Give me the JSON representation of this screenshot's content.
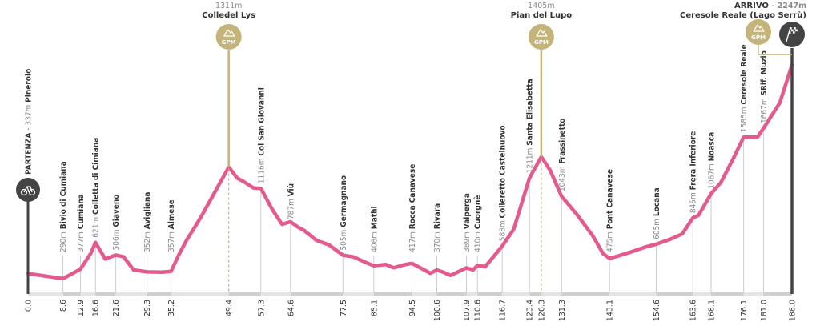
{
  "chart_data": {
    "type": "line",
    "colors": {
      "profile": "#e55a8e",
      "gpm": "#c4b47a",
      "endpoint": "#444444",
      "axis_band": "#dddddd",
      "guide": "#cccccc"
    },
    "x": [
      0.0,
      8.6,
      12.9,
      15.5,
      16.6,
      19.0,
      21.6,
      23.5,
      26.0,
      29.3,
      33.0,
      35.2,
      37.0,
      39.0,
      41.0,
      42.5,
      49.4,
      51.5,
      53.0,
      55.5,
      57.3,
      60.0,
      62.5,
      64.6,
      66.5,
      68.0,
      71.0,
      74.0,
      77.5,
      80.0,
      83.0,
      85.1,
      88.0,
      90.0,
      92.5,
      94.5,
      97.0,
      99.0,
      100.6,
      102.5,
      104.0,
      107.9,
      109.5,
      110.6,
      112.5,
      116.7,
      119.5,
      123.4,
      126.3,
      128.5,
      131.3,
      135.0,
      139.0,
      141.5,
      143.1,
      145.5,
      148.0,
      152.0,
      154.6,
      158.0,
      161.0,
      163.6,
      165.0,
      168.1,
      170.5,
      173.5,
      176.1,
      179.5,
      181.0,
      185.0,
      188.0
    ],
    "y": [
      337,
      290,
      377,
      525,
      621,
      470,
      506,
      490,
      370,
      352,
      350,
      357,
      500,
      640,
      760,
      850,
      1311,
      1210,
      1180,
      1120,
      1116,
      930,
      787,
      810,
      760,
      730,
      640,
      600,
      505,
      490,
      440,
      408,
      420,
      390,
      417,
      430,
      380,
      340,
      370,
      345,
      320,
      389,
      370,
      410,
      400,
      588,
      740,
      1211,
      1405,
      1280,
      1043,
      880,
      680,
      520,
      475,
      500,
      530,
      580,
      605,
      650,
      700,
      845,
      870,
      1067,
      1170,
      1385,
      1585,
      1585,
      1667,
      1900,
      2247
    ],
    "xlim": [
      0,
      188
    ],
    "ylim": [
      150,
      2400
    ],
    "start": {
      "km": 0.0,
      "title": "PARTENZA",
      "altitude": "337m",
      "name": "Pinerolo"
    },
    "finish": {
      "km": 188.0,
      "title": "ARRIVO",
      "altitude": "2247m",
      "name": "Ceresole Reale (Lago Serrù)"
    },
    "waypoints": [
      {
        "km": 8.6,
        "alt": 290,
        "alt_label": "290m",
        "name": "Bivio di Cumiana"
      },
      {
        "km": 12.9,
        "alt": 377,
        "alt_label": "377m",
        "name": "Cumiana"
      },
      {
        "km": 16.6,
        "alt": 621,
        "alt_label": "621m",
        "name": "Colletta di Cimiana"
      },
      {
        "km": 21.6,
        "alt": 506,
        "alt_label": "506m",
        "name": "Giaveno"
      },
      {
        "km": 29.3,
        "alt": 352,
        "alt_label": "352m",
        "name": "Avigliana"
      },
      {
        "km": 35.2,
        "alt": 357,
        "alt_label": "357m",
        "name": "Almese"
      },
      {
        "km": 57.3,
        "alt": 1116,
        "alt_label": "1116m",
        "name": "Col San Giovanni"
      },
      {
        "km": 64.6,
        "alt": 787,
        "alt_label": "787m",
        "name": "Viù"
      },
      {
        "km": 77.5,
        "alt": 505,
        "alt_label": "505m",
        "name": "Germagnano"
      },
      {
        "km": 85.1,
        "alt": 408,
        "alt_label": "408m",
        "name": "Mathi"
      },
      {
        "km": 94.5,
        "alt": 417,
        "alt_label": "417m",
        "name": "Rocca Canavese"
      },
      {
        "km": 100.6,
        "alt": 370,
        "alt_label": "370m",
        "name": "Rivara"
      },
      {
        "km": 107.9,
        "alt": 389,
        "alt_label": "389m",
        "name": "Valperga"
      },
      {
        "km": 110.6,
        "alt": 410,
        "alt_label": "410m",
        "name": "Cuorgnè"
      },
      {
        "km": 116.7,
        "alt": 588,
        "alt_label": "588m",
        "name": "Colleretto Castelnuovo"
      },
      {
        "km": 123.4,
        "alt": 1211,
        "alt_label": "1211m",
        "name": "Santa Elisabetta"
      },
      {
        "km": 131.3,
        "alt": 1043,
        "alt_label": "1043m",
        "name": "Frassinetto"
      },
      {
        "km": 143.1,
        "alt": 475,
        "alt_label": "475m",
        "name": "Pont Canavese"
      },
      {
        "km": 154.6,
        "alt": 605,
        "alt_label": "605m",
        "name": "Locana"
      },
      {
        "km": 163.6,
        "alt": 845,
        "alt_label": "845m",
        "name": "Frera Inferiore"
      },
      {
        "km": 168.1,
        "alt": 1067,
        "alt_label": "1067m",
        "name": "Noasca"
      },
      {
        "km": 176.1,
        "alt": 1585,
        "alt_label": "1585m",
        "name": "Ceresole Reale"
      },
      {
        "km": 181.0,
        "alt": 1667,
        "alt_label": "1667m",
        "name": "SRif. Muzio"
      }
    ],
    "gpm": [
      {
        "km": 49.4,
        "alt": 1311,
        "alt_label": "1311m",
        "name": "Colledel Lys",
        "badge": "GPM"
      },
      {
        "km": 126.3,
        "alt": 1405,
        "alt_label": "1405m",
        "name": "Pian del Lupo",
        "badge": "GPM"
      }
    ],
    "finish_gpm_badge": "GPM",
    "km_ticks": [
      "0.0",
      "8.6",
      "12.9",
      "16.6",
      "21.6",
      "29.3",
      "35.2",
      "49.4",
      "57.3",
      "64.6",
      "77.5",
      "85.1",
      "94.5",
      "100.6",
      "107.9",
      "110.6",
      "116.7",
      "123.4",
      "126.3",
      "131.3",
      "143.1",
      "154.6",
      "163.6",
      "168.1",
      "176.1",
      "181.0",
      "188.0"
    ],
    "icons": {
      "start": "bicycle-icon",
      "finish": "checkered-flag-icon",
      "gpm": "mountain-icon"
    }
  }
}
